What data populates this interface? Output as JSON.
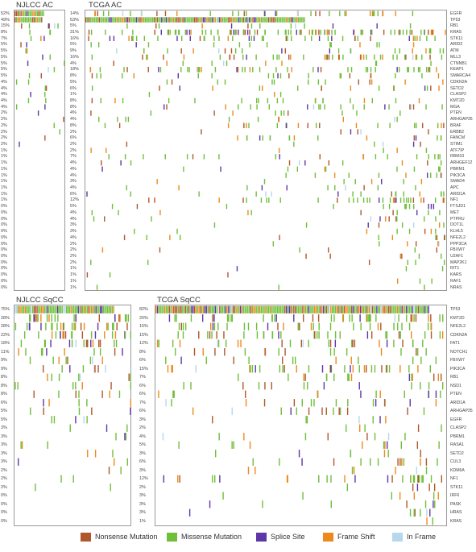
{
  "colors": {
    "nonsense": "#b0582c",
    "missense": "#6fbf3b",
    "splice": "#5e37a6",
    "frameshift": "#ee8a1d",
    "inframe": "#b7d7ec"
  },
  "legend": [
    {
      "key": "nonsense",
      "label": "Nonsense Mutation"
    },
    {
      "key": "missense",
      "label": "Missense Mutation"
    },
    {
      "key": "splice",
      "label": "Splice Site"
    },
    {
      "key": "frameshift",
      "label": "Frame Shift"
    },
    {
      "key": "inframe",
      "label": "In Frame"
    }
  ],
  "chart_data": [
    {
      "type": "heatmap",
      "title": "NJLCC AC",
      "genes": [
        "EGFR",
        "TP53",
        "RB1",
        "KRAS",
        "STK11",
        "ARID2",
        "ATM",
        "MLL3",
        "CTNNB1",
        "KEAP1",
        "SMARCA4",
        "CDKN2A",
        "SETD2",
        "CLASP2",
        "KMT2D",
        "MGA",
        "PTEN",
        "ARHGAP35",
        "BRAF",
        "ERBB2",
        "FANCM",
        "STIM1",
        "ATF7IP",
        "RBM10",
        "ARHGEF12",
        "PBRM1",
        "PIK3CA",
        "SMAD4",
        "APC",
        "ARID1A",
        "NF1",
        "FTSJD1",
        "MET",
        "PTPRU",
        "DOT1L",
        "KLHL5",
        "NFE2L2",
        "PPP3CA",
        "FBXW7",
        "U2AF1",
        "MAP2K1",
        "RIT1",
        "KARS",
        "RAF1",
        "NRAS"
      ],
      "frequencies": [
        "52%",
        "49%",
        "15%",
        "8%",
        "7%",
        "5%",
        "5%",
        "5%",
        "5%",
        "5%",
        "5%",
        "4%",
        "4%",
        "4%",
        "4%",
        "4%",
        "2%",
        "2%",
        "2%",
        "2%",
        "2%",
        "2%",
        "1%",
        "1%",
        "1%",
        "1%",
        "1%",
        "1%",
        "1%",
        "1%",
        "1%",
        "0%",
        "0%",
        "0%",
        "0%",
        "0%",
        "0%",
        "0%",
        "0%",
        "0%",
        "0%",
        "0%",
        "0%",
        "0%",
        "0%"
      ]
    },
    {
      "type": "heatmap",
      "title": "TCGA AC",
      "genes": [
        "EGFR",
        "TP53",
        "RB1",
        "KRAS",
        "STK11",
        "ARID2",
        "ATM",
        "MLL3",
        "CTNNB1",
        "KEAP1",
        "SMARCA4",
        "CDKN2A",
        "SETD2",
        "CLASP2",
        "KMT2D",
        "MGA",
        "PTEN",
        "ARHGAP35",
        "BRAF",
        "ERBB2",
        "FANCM",
        "STIM1",
        "ATF7IP",
        "RBM10",
        "ARHGEF12",
        "PBRM1",
        "PIK3CA",
        "SMAD4",
        "APC",
        "ARID1A",
        "NF1",
        "FTSJD1",
        "MET",
        "PTPRU",
        "DOT1L",
        "KLHL5",
        "NFE2L2",
        "PPP3CA",
        "FBXW7",
        "U2AF1",
        "MAP2K1",
        "RIT1",
        "KARS",
        "RAF1",
        "NRAS"
      ],
      "frequencies": [
        "14%",
        "53%",
        "5%",
        "31%",
        "16%",
        "5%",
        "9%",
        "16%",
        "4%",
        "18%",
        "8%",
        "5%",
        "6%",
        "1%",
        "8%",
        "8%",
        "4%",
        "4%",
        "8%",
        "2%",
        "6%",
        "2%",
        "2%",
        "7%",
        "4%",
        "4%",
        "4%",
        "3%",
        "4%",
        "6%",
        "12%",
        "5%",
        "4%",
        "4%",
        "3%",
        "3%",
        "4%",
        "2%",
        "2%",
        "2%",
        "2%",
        "1%",
        "1%",
        "1%",
        "1%"
      ]
    },
    {
      "type": "heatmap",
      "title": "NJLCC SqCC",
      "genes": [
        "TP53",
        "KMT2D",
        "NFE2L2",
        "CDKN2A",
        "FAT1",
        "NOTCH1",
        "FBXW7",
        "PIK3CA",
        "RB1",
        "NSD1",
        "PTEN",
        "ARID1A",
        "ARHGAP35",
        "EGFR",
        "CLASP2",
        "PBRM1",
        "RASA1",
        "SETD2",
        "CUL3",
        "KDM6A",
        "NF1",
        "STK11",
        "IRF6",
        "PASK",
        "HRAS",
        "KRAS"
      ],
      "frequencies": [
        "75%",
        "28%",
        "28%",
        "22%",
        "18%",
        "11%",
        "9%",
        "9%",
        "8%",
        "8%",
        "8%",
        "6%",
        "5%",
        "5%",
        "3%",
        "3%",
        "3%",
        "3%",
        "3%",
        "2%",
        "2%",
        "2%",
        "0%",
        "0%",
        "0%",
        "0%"
      ]
    },
    {
      "type": "heatmap",
      "title": "TCGA SqCC",
      "genes": [
        "TP53",
        "KMT2D",
        "NFE2L2",
        "CDKN2A",
        "FAT1",
        "NOTCH1",
        "FBXW7",
        "PIK3CA",
        "RB1",
        "NSD1",
        "PTEN",
        "ARID1A",
        "ARHGAP35",
        "EGFR",
        "CLASP2",
        "PBRM1",
        "RASA1",
        "SETD2",
        "CUL3",
        "KDM6A",
        "NF1",
        "STK11",
        "IRF6",
        "PASK",
        "HRAS",
        "KRAS"
      ],
      "frequencies": [
        "82%",
        "20%",
        "15%",
        "15%",
        "12%",
        "8%",
        "6%",
        "15%",
        "7%",
        "6%",
        "6%",
        "7%",
        "6%",
        "3%",
        "2%",
        "4%",
        "5%",
        "3%",
        "6%",
        "3%",
        "12%",
        "2%",
        "3%",
        "3%",
        "3%",
        "1%"
      ]
    }
  ]
}
